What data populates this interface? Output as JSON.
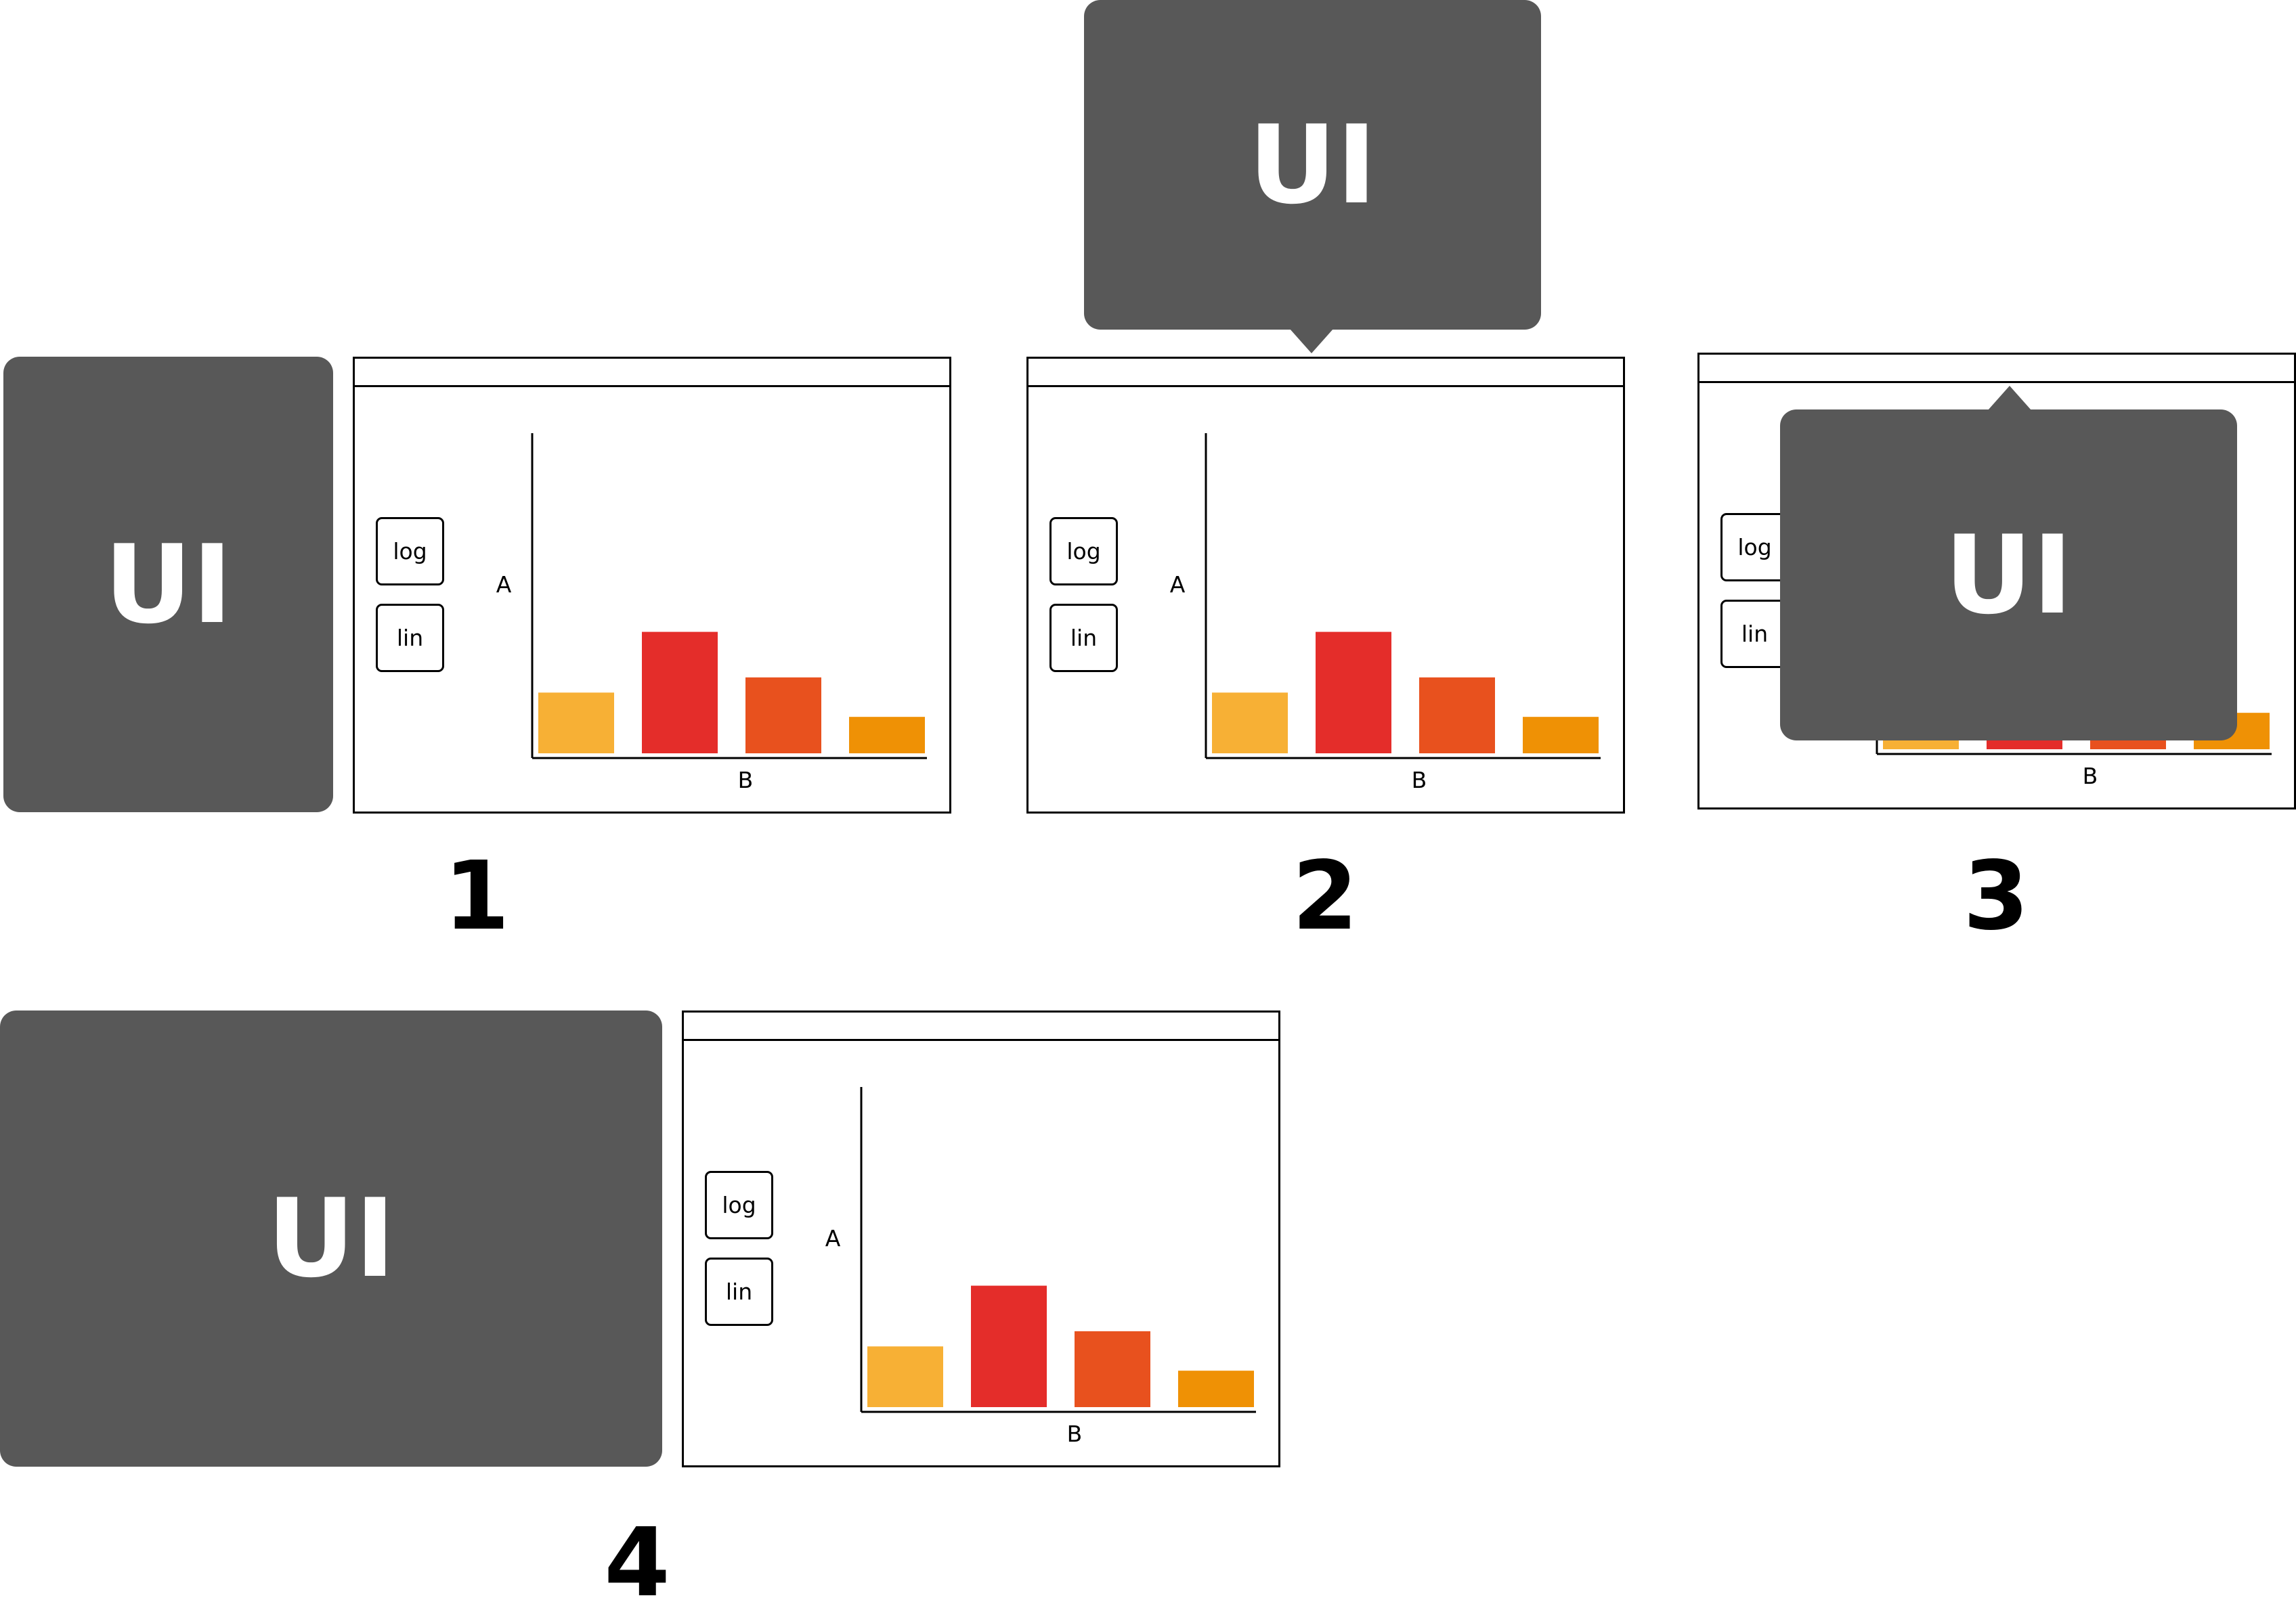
{
  "colors": {
    "panel": "#585858",
    "bar_colors": [
      "#F7B035",
      "#E42D2A",
      "#E8511E",
      "#EF9105"
    ]
  },
  "ui_label": "UI",
  "buttons": {
    "log": "log",
    "lin": "lin"
  },
  "axes": {
    "y": "A",
    "x": "B"
  },
  "steps": [
    "1",
    "2",
    "3",
    "4"
  ],
  "chart_data": {
    "type": "bar",
    "categories": [
      "",
      "",
      "",
      ""
    ],
    "values": [
      20,
      40,
      25,
      12
    ],
    "xlabel": "B",
    "ylabel": "A",
    "ylim": [
      0,
      107
    ],
    "grid": false
  }
}
